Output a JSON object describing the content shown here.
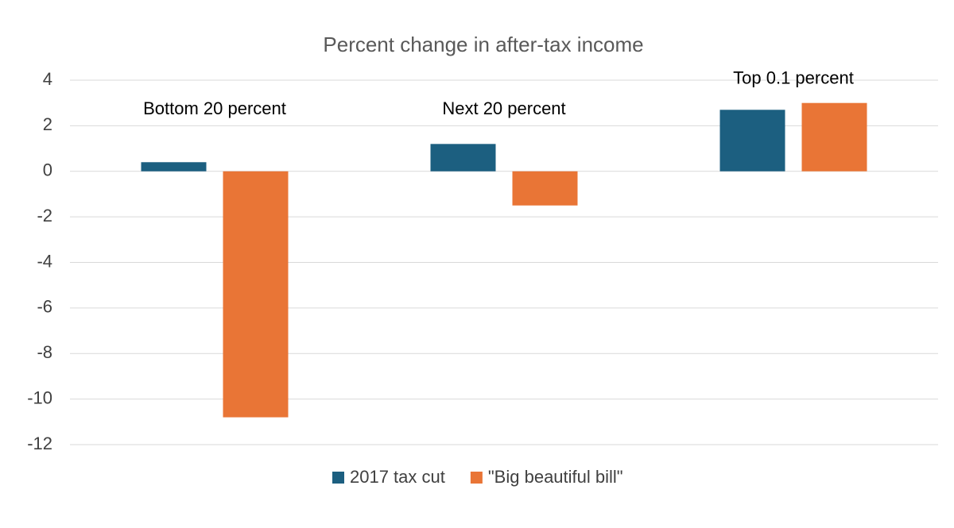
{
  "chart_data": {
    "type": "bar",
    "title": "Percent change in after-tax income",
    "categories": [
      "Bottom 20 percent",
      "Next 20 percent",
      "Top 0.1 percent"
    ],
    "series": [
      {
        "name": "2017 tax cut",
        "color": "#1c5f80",
        "values": [
          0.4,
          1.2,
          2.7
        ]
      },
      {
        "name": "\"Big beautiful bill\"",
        "color": "#e97536",
        "values": [
          -10.8,
          -1.5,
          3.0
        ]
      }
    ],
    "ylim": [
      -12,
      4
    ],
    "yticks": [
      -12,
      -10,
      -8,
      -6,
      -4,
      -2,
      0,
      2,
      4
    ],
    "grid": true,
    "legend": "bottom"
  }
}
